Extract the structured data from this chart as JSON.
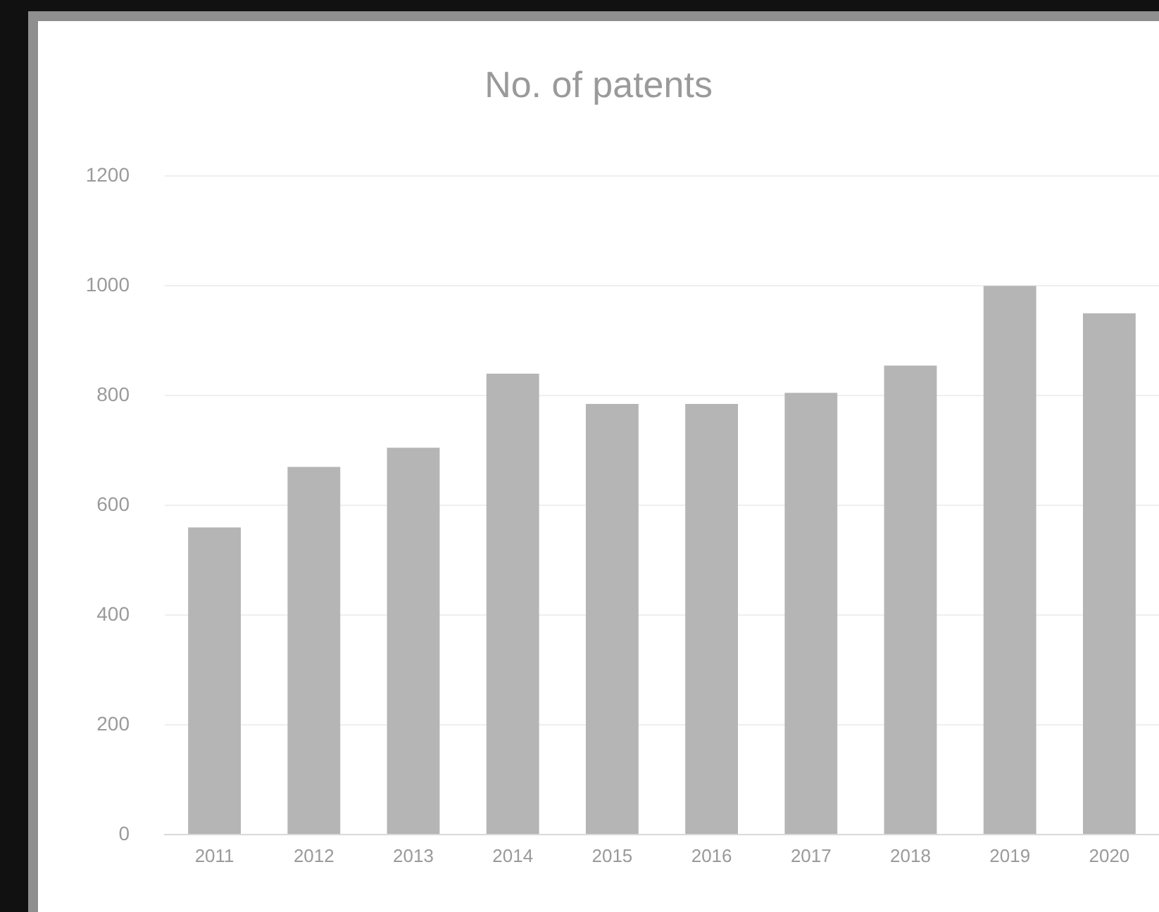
{
  "chart_data": {
    "type": "bar",
    "title": "No. of patents",
    "categories": [
      "2011",
      "2012",
      "2013",
      "2014",
      "2015",
      "2016",
      "2017",
      "2018",
      "2019",
      "2020"
    ],
    "values": [
      560,
      670,
      705,
      840,
      785,
      785,
      805,
      855,
      1000,
      950
    ],
    "color": "#b5b5b5",
    "ylim": [
      0,
      1200
    ],
    "yticks": [
      0,
      200,
      400,
      600,
      800,
      1000,
      1200
    ],
    "grid": "y"
  }
}
